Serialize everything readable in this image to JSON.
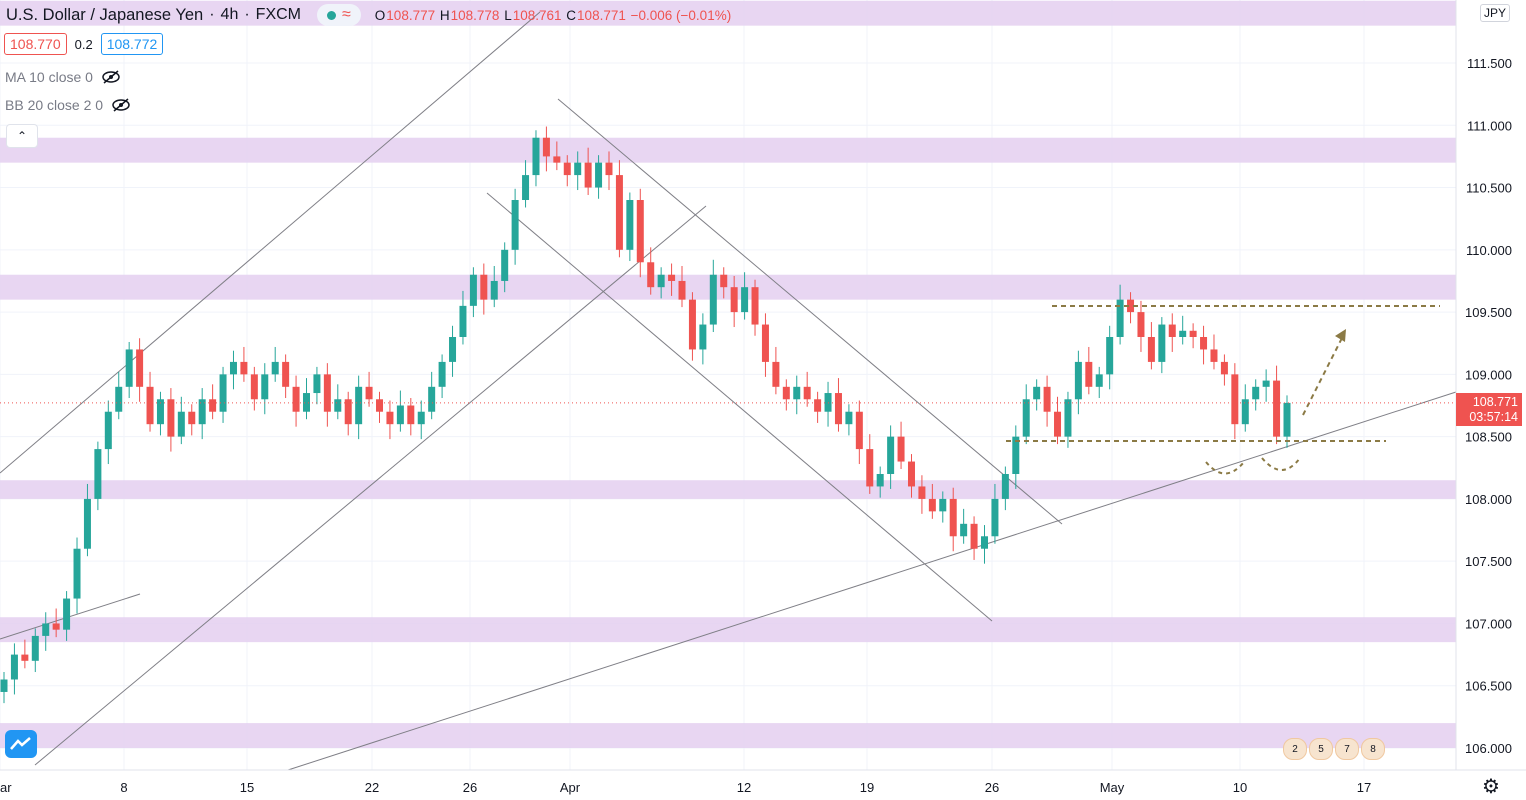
{
  "header": {
    "symbol": "U.S. Dollar / Japanese Yen",
    "interval": "4h",
    "exchange": "FXCM",
    "open_label": "O",
    "open": "108.777",
    "high_label": "H",
    "high": "108.778",
    "low_label": "L",
    "low": "108.761",
    "close_label": "C",
    "close": "108.771",
    "change": "−0.006 (−0.01%)"
  },
  "quote": {
    "sell": "108.770",
    "spread": "0.2",
    "buy": "108.772"
  },
  "indicators": [
    {
      "label": "MA 10 close 0"
    },
    {
      "label": "BB 20 close 2 0"
    }
  ],
  "currency_badge": "JPY",
  "last_price": {
    "price": "108.771",
    "countdown": "03:57:14"
  },
  "event_badges": [
    "2",
    "5",
    "7",
    "8"
  ],
  "colors": {
    "up": "#26a69a",
    "down": "#ef5350",
    "zone": "#e4cff0",
    "trendline": "#7f7f86",
    "pattern": "#8b7a45",
    "price_line": "#ef5350"
  },
  "icons": [
    "eye-off-icon",
    "chevron-up-icon",
    "tradingview-logo-icon",
    "gear-icon",
    "wave-icon"
  ],
  "chart_data": {
    "type": "candlestick",
    "y_axis_ticks": [
      "111.500",
      "111.000",
      "110.500",
      "110.000",
      "109.500",
      "109.000",
      "108.500",
      "108.000",
      "107.500",
      "107.000",
      "106.500",
      "106.000"
    ],
    "y_range": [
      105.9,
      112.05
    ],
    "x_axis_ticks": [
      "ar",
      "8",
      "15",
      "22",
      "26",
      "Apr",
      "12",
      "19",
      "26",
      "May",
      "10",
      "17"
    ],
    "support_resistance_zones": [
      [
        111.8,
        112.0
      ],
      [
        110.7,
        110.9
      ],
      [
        109.6,
        109.8
      ],
      [
        108.0,
        108.15
      ],
      [
        106.85,
        107.05
      ],
      [
        106.0,
        106.2
      ]
    ],
    "horizontal_levels": [
      109.55,
      108.45
    ],
    "last_price": 108.771,
    "candles_close": [
      106.55,
      106.75,
      106.7,
      106.9,
      107.0,
      106.95,
      107.2,
      107.6,
      108.0,
      108.4,
      108.7,
      108.9,
      109.2,
      108.9,
      108.6,
      108.8,
      108.5,
      108.7,
      108.6,
      108.8,
      108.7,
      109.0,
      109.1,
      109.0,
      108.8,
      109.0,
      109.1,
      108.9,
      108.7,
      108.85,
      109.0,
      108.7,
      108.8,
      108.6,
      108.9,
      108.8,
      108.7,
      108.6,
      108.75,
      108.6,
      108.7,
      108.9,
      109.1,
      109.3,
      109.55,
      109.8,
      109.6,
      109.75,
      110.0,
      110.4,
      110.6,
      110.9,
      110.75,
      110.7,
      110.6,
      110.7,
      110.5,
      110.7,
      110.6,
      110.0,
      110.4,
      109.9,
      109.7,
      109.8,
      109.75,
      109.6,
      109.2,
      109.4,
      109.8,
      109.7,
      109.5,
      109.7,
      109.4,
      109.1,
      108.9,
      108.8,
      108.9,
      108.8,
      108.7,
      108.85,
      108.6,
      108.7,
      108.4,
      108.1,
      108.2,
      108.5,
      108.3,
      108.1,
      108.0,
      107.9,
      108.0,
      107.7,
      107.8,
      107.6,
      107.7,
      108.0,
      108.2,
      108.5,
      108.8,
      108.9,
      108.7,
      108.5,
      108.8,
      109.1,
      108.9,
      109.0,
      109.3,
      109.6,
      109.5,
      109.3,
      109.1,
      109.4,
      109.3,
      109.35,
      109.3,
      109.2,
      109.1,
      109.0,
      108.6,
      108.8,
      108.9,
      108.95,
      108.5,
      108.771
    ]
  }
}
